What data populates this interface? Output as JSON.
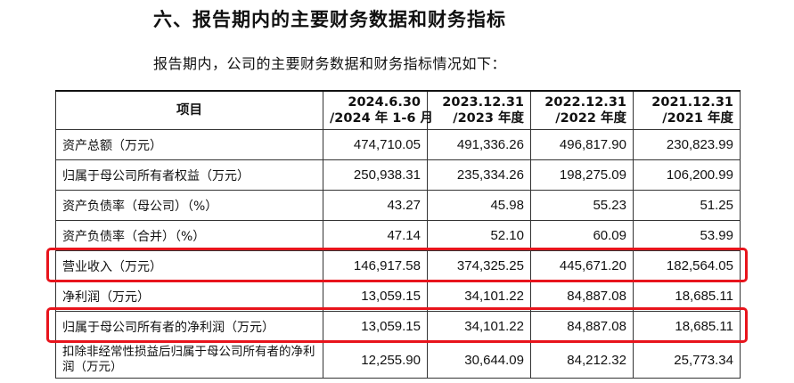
{
  "heading": "六、报告期内的主要财务数据和财务指标",
  "intro": "报告期内，公司的主要财务数据和财务指标情况如下：",
  "table": {
    "item_header": "项目",
    "periods": [
      {
        "line1": "2024.6.30",
        "line2": "/2024 年 1-6 月"
      },
      {
        "line1": "2023.12.31",
        "line2": "/2023 年度"
      },
      {
        "line1": "2022.12.31",
        "line2": "/2022 年度"
      },
      {
        "line1": "2021.12.31",
        "line2": "/2021 年度"
      }
    ],
    "rows": [
      {
        "label": "资产总额（万元）",
        "values": [
          "474,710.05",
          "491,336.26",
          "496,817.90",
          "230,823.99"
        ]
      },
      {
        "label": "归属于母公司所有者权益（万元）",
        "values": [
          "250,938.31",
          "235,334.26",
          "198,275.09",
          "106,200.99"
        ]
      },
      {
        "label": "资产负债率（母公司）（%）",
        "values": [
          "43.27",
          "45.98",
          "55.23",
          "51.25"
        ]
      },
      {
        "label": "资产负债率（合并）（%）",
        "values": [
          "47.14",
          "52.10",
          "60.09",
          "53.99"
        ]
      },
      {
        "label": "营业收入（万元）",
        "values": [
          "146,917.58",
          "374,325.25",
          "445,671.20",
          "182,564.05"
        ]
      },
      {
        "label": "净利润（万元）",
        "values": [
          "13,059.15",
          "34,101.22",
          "84,887.08",
          "18,685.11"
        ]
      },
      {
        "label": "归属于母公司所有者的净利润（万元）",
        "values": [
          "13,059.15",
          "34,101.22",
          "84,887.08",
          "18,685.11"
        ]
      },
      {
        "label": "扣除非经常性损益后归属于母公司所有者的净利润（万元）",
        "values": [
          "12,255.90",
          "30,644.09",
          "84,212.32",
          "25,773.34"
        ]
      }
    ]
  },
  "highlight_color": "#e8141c"
}
